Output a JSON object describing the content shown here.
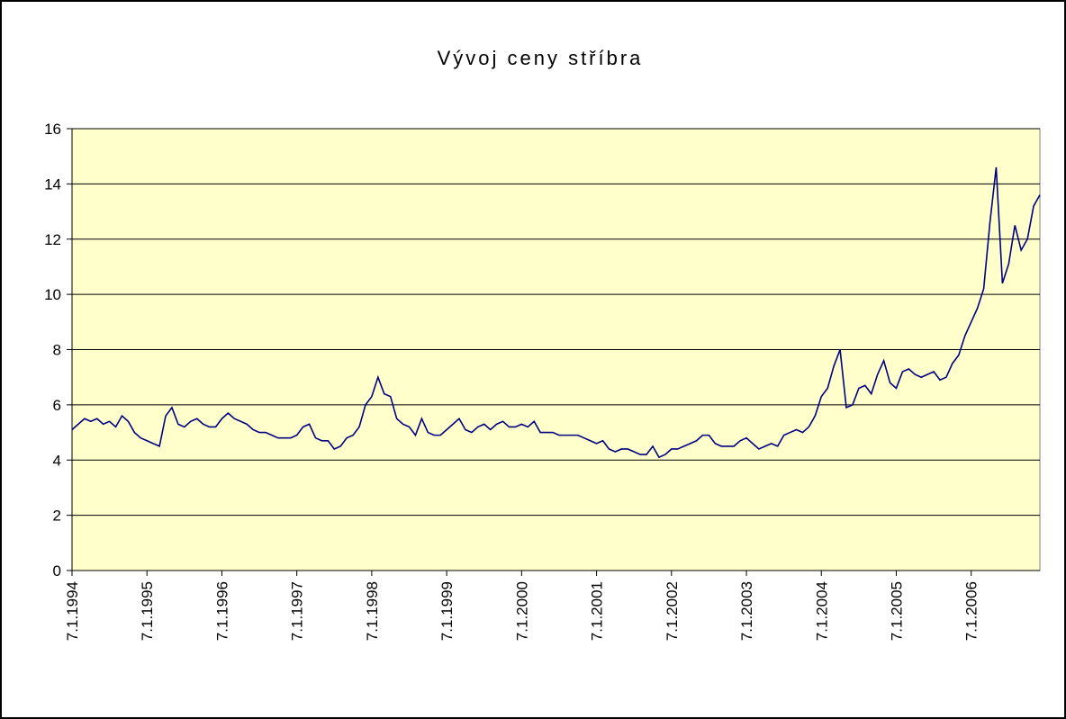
{
  "chart_data": {
    "type": "line",
    "title": "Vývoj ceny stříbra",
    "categories": [
      "7.1.1994",
      null,
      null,
      null,
      null,
      null,
      null,
      null,
      null,
      null,
      null,
      null,
      "7.1.1995",
      null,
      null,
      null,
      null,
      null,
      null,
      null,
      null,
      null,
      null,
      null,
      "7.1.1996",
      null,
      null,
      null,
      null,
      null,
      null,
      null,
      null,
      null,
      null,
      null,
      "7.1.1997",
      null,
      null,
      null,
      null,
      null,
      null,
      null,
      null,
      null,
      null,
      null,
      "7.1.1998",
      null,
      null,
      null,
      null,
      null,
      null,
      null,
      null,
      null,
      null,
      null,
      "7.1.1999",
      null,
      null,
      null,
      null,
      null,
      null,
      null,
      null,
      null,
      null,
      null,
      "7.1.2000",
      null,
      null,
      null,
      null,
      null,
      null,
      null,
      null,
      null,
      null,
      null,
      "7.1.2001",
      null,
      null,
      null,
      null,
      null,
      null,
      null,
      null,
      null,
      null,
      null,
      "7.1.2002",
      null,
      null,
      null,
      null,
      null,
      null,
      null,
      null,
      null,
      null,
      null,
      "7.1.2003",
      null,
      null,
      null,
      null,
      null,
      null,
      null,
      null,
      null,
      null,
      null,
      "7.1.2004",
      null,
      null,
      null,
      null,
      null,
      null,
      null,
      null,
      null,
      null,
      null,
      "7.1.2005",
      null,
      null,
      null,
      null,
      null,
      null,
      null,
      null,
      null,
      null,
      null,
      "7.1.2006",
      null,
      null,
      null,
      null,
      null,
      null,
      null,
      null,
      null,
      null,
      null
    ],
    "values": [
      5.1,
      5.3,
      5.5,
      5.4,
      5.5,
      5.3,
      5.4,
      5.2,
      5.6,
      5.4,
      5.0,
      4.8,
      4.7,
      4.6,
      4.5,
      5.6,
      5.9,
      5.3,
      5.2,
      5.4,
      5.5,
      5.3,
      5.2,
      5.2,
      5.5,
      5.7,
      5.5,
      5.4,
      5.3,
      5.1,
      5.0,
      5.0,
      4.9,
      4.8,
      4.8,
      4.8,
      4.9,
      5.2,
      5.3,
      4.8,
      4.7,
      4.7,
      4.4,
      4.5,
      4.8,
      4.9,
      5.2,
      6.0,
      6.3,
      7.0,
      6.4,
      6.3,
      5.5,
      5.3,
      5.2,
      4.9,
      5.5,
      5.0,
      4.9,
      4.9,
      5.1,
      5.3,
      5.5,
      5.1,
      5.0,
      5.2,
      5.3,
      5.1,
      5.3,
      5.4,
      5.2,
      5.2,
      5.3,
      5.2,
      5.4,
      5.0,
      5.0,
      5.0,
      4.9,
      4.9,
      4.9,
      4.9,
      4.8,
      4.7,
      4.6,
      4.7,
      4.4,
      4.3,
      4.4,
      4.4,
      4.3,
      4.2,
      4.2,
      4.5,
      4.1,
      4.2,
      4.4,
      4.4,
      4.5,
      4.6,
      4.7,
      4.9,
      4.9,
      4.6,
      4.5,
      4.5,
      4.5,
      4.7,
      4.8,
      4.6,
      4.4,
      4.5,
      4.6,
      4.5,
      4.9,
      5.0,
      5.1,
      5.0,
      5.2,
      5.6,
      6.3,
      6.6,
      7.4,
      8.0,
      5.9,
      6.0,
      6.6,
      6.7,
      6.4,
      7.1,
      7.6,
      6.8,
      6.6,
      7.2,
      7.3,
      7.1,
      7.0,
      7.1,
      7.2,
      6.9,
      7.0,
      7.5,
      7.8,
      8.5,
      9.0,
      9.5,
      10.2,
      12.6,
      14.6,
      10.4,
      11.1,
      12.5,
      11.6,
      12.0,
      13.2,
      13.6
    ],
    "color": "#000080",
    "plot_background": "#ffffcc",
    "ylim": [
      0,
      16
    ],
    "yticks": [
      0,
      2,
      4,
      6,
      8,
      10,
      12,
      14,
      16
    ],
    "grid": true
  }
}
